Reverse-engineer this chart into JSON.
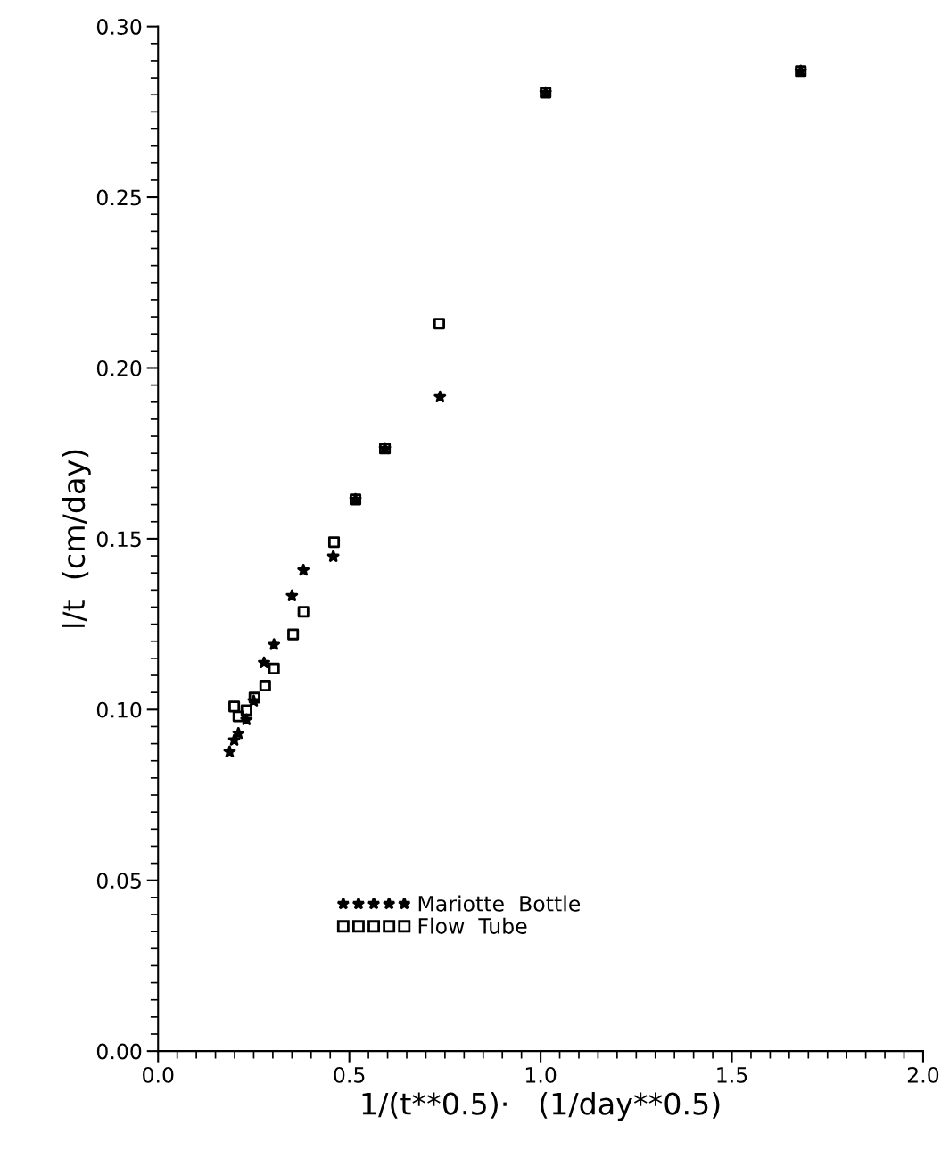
{
  "chart_data": {
    "type": "scatter",
    "xlabel": "1/(t**0.5)·   (1/day**0.5)",
    "ylabel": "l/t  (cm/day)",
    "xlim": [
      0.0,
      2.0
    ],
    "xticks": [
      {
        "value": 0,
        "label": "0.0"
      },
      0.5,
      {
        "value": 1,
        "label": "1.0"
      },
      1.5,
      {
        "value": 2,
        "label": "2.0"
      }
    ],
    "ylim": [
      0.0,
      0.3
    ],
    "yticks": [
      {
        "value": 0,
        "label": "0.00"
      },
      0.05,
      {
        "value": 0.1,
        "label": "0.10"
      },
      0.15,
      {
        "value": 0.2,
        "label": "0.20"
      },
      0.25,
      {
        "value": 0.3,
        "label": "0.30"
      }
    ],
    "grid": false,
    "legend": "bottom left",
    "series": [
      {
        "name": "Mariotte  Bottle",
        "color": "#000000",
        "marker": "star",
        "x": [
          0.187,
          0.199,
          0.21,
          0.231,
          0.25,
          0.277,
          0.303,
          0.35,
          0.38,
          0.458,
          0.516,
          0.593,
          0.737,
          1.013,
          1.68
        ],
        "values": [
          0.0876,
          0.091,
          0.093,
          0.097,
          0.1025,
          0.1137,
          0.119,
          0.1333,
          0.1408,
          0.1448,
          0.1615,
          0.1764,
          0.1915,
          0.2806,
          0.2869
        ]
      },
      {
        "name": "Flow  Tube",
        "color": "#000000",
        "marker": "square",
        "x": [
          0.199,
          0.21,
          0.231,
          0.252,
          0.28,
          0.303,
          0.353,
          0.38,
          0.46,
          0.516,
          0.593,
          0.735,
          1.013,
          1.68
        ],
        "values": [
          0.1009,
          0.098,
          0.0998,
          0.1035,
          0.107,
          0.112,
          0.122,
          0.1286,
          0.149,
          0.1615,
          0.1764,
          0.213,
          0.2806,
          0.2869
        ]
      }
    ]
  }
}
